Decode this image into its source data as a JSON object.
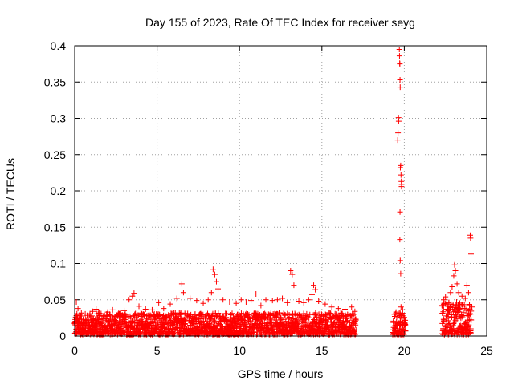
{
  "chart_data": {
    "type": "scatter",
    "title": "Day 155 of 2023, Rate Of TEC Index for receiver seyg",
    "xlabel": "GPS time / hours",
    "ylabel": "ROTI / TECUs",
    "xlim": [
      0,
      25
    ],
    "ylim": [
      0,
      0.4
    ],
    "xticks": [
      0,
      5,
      10,
      15,
      20,
      25
    ],
    "yticks": [
      0,
      0.05,
      0.1,
      0.15,
      0.2,
      0.25,
      0.3,
      0.35,
      0.4
    ],
    "ytick_labels": [
      "0",
      "0.05",
      "0.1",
      "0.15",
      "0.2",
      "0.25",
      "0.3",
      "0.35",
      "0.4"
    ],
    "grid": true,
    "marker": "+",
    "marker_color": "#ff0000",
    "points": [
      [
        0.1,
        0.047
      ],
      [
        0.2,
        0.038
      ],
      [
        0.3,
        0.029
      ],
      [
        0.5,
        0.021
      ],
      [
        0.8,
        0.025
      ],
      [
        1.1,
        0.034
      ],
      [
        1.3,
        0.037
      ],
      [
        1.6,
        0.031
      ],
      [
        2.0,
        0.033
      ],
      [
        2.3,
        0.036
      ],
      [
        2.6,
        0.028
      ],
      [
        3.0,
        0.035
      ],
      [
        3.3,
        0.05
      ],
      [
        3.5,
        0.055
      ],
      [
        3.6,
        0.059
      ],
      [
        3.9,
        0.041
      ],
      [
        4.3,
        0.037
      ],
      [
        4.7,
        0.036
      ],
      [
        5.1,
        0.046
      ],
      [
        5.4,
        0.038
      ],
      [
        5.8,
        0.044
      ],
      [
        6.2,
        0.052
      ],
      [
        6.5,
        0.072
      ],
      [
        6.6,
        0.06
      ],
      [
        7.0,
        0.052
      ],
      [
        7.4,
        0.049
      ],
      [
        7.8,
        0.045
      ],
      [
        8.1,
        0.05
      ],
      [
        8.3,
        0.06
      ],
      [
        8.4,
        0.092
      ],
      [
        8.5,
        0.085
      ],
      [
        8.6,
        0.075
      ],
      [
        8.7,
        0.065
      ],
      [
        9.0,
        0.05
      ],
      [
        9.4,
        0.047
      ],
      [
        9.8,
        0.045
      ],
      [
        10.1,
        0.05
      ],
      [
        10.4,
        0.047
      ],
      [
        10.7,
        0.049
      ],
      [
        11.0,
        0.058
      ],
      [
        11.3,
        0.042
      ],
      [
        11.6,
        0.05
      ],
      [
        12.0,
        0.049
      ],
      [
        12.3,
        0.05
      ],
      [
        12.6,
        0.052
      ],
      [
        12.9,
        0.046
      ],
      [
        13.1,
        0.09
      ],
      [
        13.2,
        0.085
      ],
      [
        13.3,
        0.07
      ],
      [
        13.6,
        0.048
      ],
      [
        13.9,
        0.046
      ],
      [
        14.2,
        0.05
      ],
      [
        14.4,
        0.057
      ],
      [
        14.5,
        0.07
      ],
      [
        14.6,
        0.064
      ],
      [
        14.8,
        0.048
      ],
      [
        15.2,
        0.044
      ],
      [
        15.6,
        0.04
      ],
      [
        16.0,
        0.038
      ],
      [
        16.4,
        0.037
      ],
      [
        16.8,
        0.04
      ],
      [
        17.0,
        0.034
      ],
      [
        19.4,
        0.03
      ],
      [
        19.5,
        0.033
      ],
      [
        19.6,
        0.27
      ],
      [
        19.62,
        0.28
      ],
      [
        19.65,
        0.301
      ],
      [
        19.66,
        0.296
      ],
      [
        19.7,
        0.395
      ],
      [
        19.71,
        0.386
      ],
      [
        19.72,
        0.376
      ],
      [
        19.73,
        0.375
      ],
      [
        19.74,
        0.353
      ],
      [
        19.75,
        0.343
      ],
      [
        19.76,
        0.232
      ],
      [
        19.78,
        0.235
      ],
      [
        19.8,
        0.222
      ],
      [
        19.82,
        0.213
      ],
      [
        19.83,
        0.206
      ],
      [
        19.84,
        0.209
      ],
      [
        19.74,
        0.171
      ],
      [
        19.73,
        0.133
      ],
      [
        19.75,
        0.104
      ],
      [
        19.78,
        0.086
      ],
      [
        19.8,
        0.04
      ],
      [
        19.9,
        0.036
      ],
      [
        20.0,
        0.025
      ],
      [
        22.4,
        0.05
      ],
      [
        22.5,
        0.054
      ],
      [
        22.7,
        0.046
      ],
      [
        22.8,
        0.06
      ],
      [
        22.9,
        0.068
      ],
      [
        23.0,
        0.083
      ],
      [
        23.05,
        0.098
      ],
      [
        23.1,
        0.09
      ],
      [
        23.2,
        0.072
      ],
      [
        23.3,
        0.06
      ],
      [
        23.5,
        0.055
      ],
      [
        23.7,
        0.052
      ],
      [
        23.8,
        0.07
      ],
      [
        23.9,
        0.06
      ],
      [
        24.0,
        0.139
      ],
      [
        24.02,
        0.135
      ],
      [
        24.05,
        0.113
      ],
      [
        24.1,
        0.04
      ]
    ],
    "dense_segments": [
      {
        "x_start": 0.0,
        "x_end": 17.1,
        "y_floor": 0.0,
        "y_top_typical": 0.03
      },
      {
        "x_start": 19.3,
        "x_end": 20.1,
        "y_floor": 0.0,
        "y_top_typical": 0.03
      },
      {
        "x_start": 22.3,
        "x_end": 24.1,
        "y_floor": 0.0,
        "y_top_typical": 0.045
      }
    ]
  }
}
